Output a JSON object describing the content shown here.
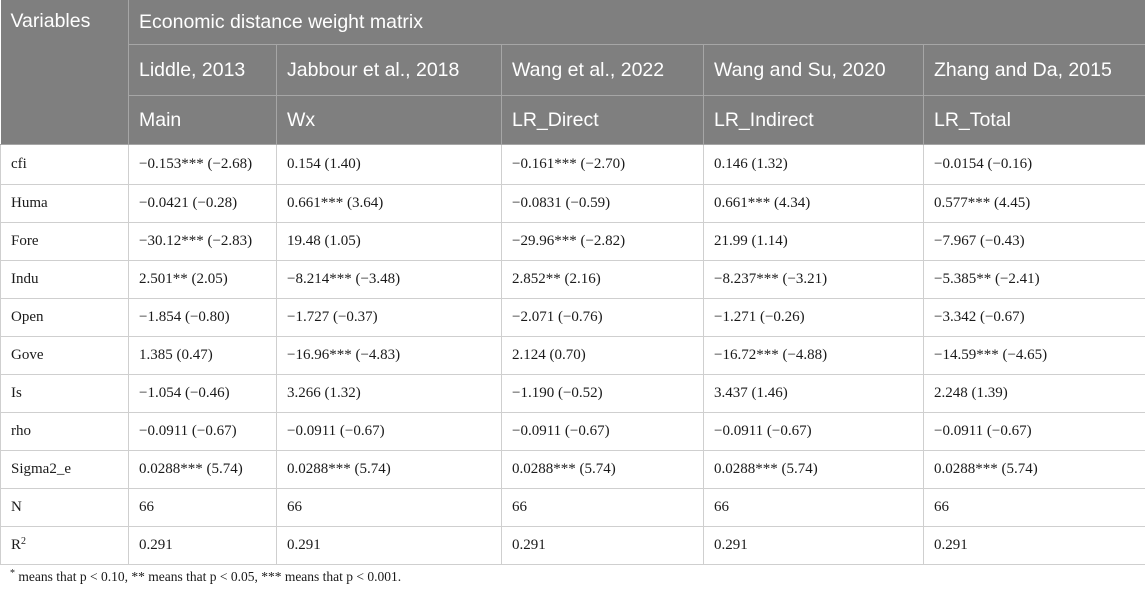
{
  "table": {
    "header": {
      "variables_label": "Variables",
      "group_label": "Economic distance weight matrix",
      "citations": [
        "Liddle, 2013",
        "Jabbour et al., 2018",
        "Wang et al., 2022",
        "Wang and Su, 2020",
        "Zhang and Da, 2015"
      ],
      "effects": [
        "Main",
        "Wx",
        "LR_Direct",
        "LR_Indirect",
        "LR_Total"
      ]
    },
    "rows": [
      {
        "name": "cfi",
        "cells": [
          "−0.153*** (−2.68)",
          "0.154 (1.40)",
          "−0.161*** (−2.70)",
          "0.146 (1.32)",
          "−0.0154 (−0.16)"
        ]
      },
      {
        "name": "Huma",
        "cells": [
          "−0.0421 (−0.28)",
          "0.661*** (3.64)",
          "−0.0831 (−0.59)",
          "0.661*** (4.34)",
          "0.577*** (4.45)"
        ]
      },
      {
        "name": "Fore",
        "cells": [
          "−30.12*** (−2.83)",
          "19.48 (1.05)",
          "−29.96*** (−2.82)",
          "21.99 (1.14)",
          "−7.967 (−0.43)"
        ]
      },
      {
        "name": "Indu",
        "cells": [
          "2.501** (2.05)",
          "−8.214*** (−3.48)",
          "2.852** (2.16)",
          "−8.237*** (−3.21)",
          "−5.385** (−2.41)"
        ]
      },
      {
        "name": "Open",
        "cells": [
          "−1.854 (−0.80)",
          "−1.727 (−0.37)",
          "−2.071 (−0.76)",
          "−1.271 (−0.26)",
          "−3.342 (−0.67)"
        ]
      },
      {
        "name": "Gove",
        "cells": [
          "1.385 (0.47)",
          "−16.96*** (−4.83)",
          "2.124 (0.70)",
          "−16.72*** (−4.88)",
          "−14.59*** (−4.65)"
        ]
      },
      {
        "name": "Is",
        "cells": [
          "−1.054 (−0.46)",
          "3.266 (1.32)",
          "−1.190 (−0.52)",
          "3.437 (1.46)",
          "2.248 (1.39)"
        ]
      },
      {
        "name": "rho",
        "cells": [
          "−0.0911 (−0.67)",
          "−0.0911 (−0.67)",
          "−0.0911 (−0.67)",
          "−0.0911 (−0.67)",
          "−0.0911 (−0.67)"
        ]
      },
      {
        "name": "Sigma2_e",
        "cells": [
          "0.0288*** (5.74)",
          "0.0288*** (5.74)",
          "0.0288*** (5.74)",
          "0.0288*** (5.74)",
          "0.0288*** (5.74)"
        ]
      },
      {
        "name": "N",
        "cells": [
          "66",
          "66",
          "66",
          "66",
          "66"
        ]
      },
      {
        "name": "R",
        "sup": "2",
        "cells": [
          "0.291",
          "0.291",
          "0.291",
          "0.291",
          "0.291"
        ]
      }
    ],
    "footnote": {
      "marker": "*",
      "text": " means that p < 0.10, ** means that p < 0.05, *** means that p < 0.001."
    }
  }
}
